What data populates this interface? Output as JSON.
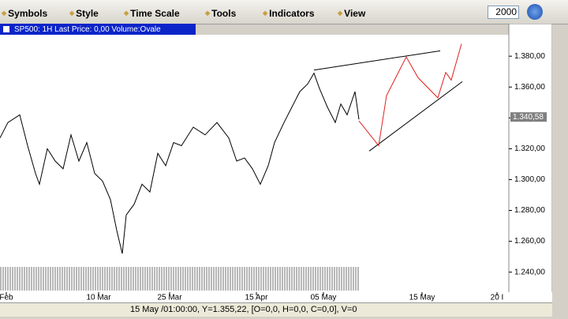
{
  "toolbar": {
    "menus": [
      "Symbols",
      "Style",
      "Time Scale",
      "Tools",
      "Indicators",
      "View"
    ],
    "input": "2000"
  },
  "chart_data": {
    "type": "line",
    "title": "SP500: 1H Last Price: 0,00 Volume:Ovale",
    "series": [
      {
        "color": "#000000",
        "x": [
          0,
          2.5,
          6.25,
          8.75,
          11.25,
          12.5,
          15,
          17.5,
          20,
          22.5,
          25,
          27.5,
          30,
          32.5,
          35,
          37,
          38.75,
          40,
          42.5,
          45,
          47.5,
          50,
          52.5,
          55,
          57.5,
          61.25,
          65,
          68.75,
          72.5,
          75,
          77.5,
          80,
          82.5,
          85,
          87,
          90,
          92.5,
          95,
          97.5,
          99.5,
          101.25,
          103.75,
          106.25,
          108,
          110,
          112.5,
          113.75
        ],
        "values": [
          1327,
          1337,
          1342,
          1322,
          1304,
          1297,
          1320,
          1312,
          1307,
          1329,
          1312,
          1324,
          1304,
          1299,
          1287,
          1267,
          1252,
          1277,
          1284,
          1297,
          1292,
          1317,
          1309,
          1324,
          1322,
          1334,
          1329,
          1337,
          1327,
          1312,
          1314,
          1307,
          1297,
          1309,
          1324,
          1337,
          1347,
          1357,
          1362,
          1369,
          1359,
          1347,
          1337,
          1349,
          1342,
          1357,
          1339
        ]
      },
      {
        "color": "#000000",
        "x": [
          99.5,
          139.5
        ],
        "values": [
          1371,
          1383.5
        ]
      },
      {
        "color": "#000000",
        "x": [
          117,
          146.5
        ],
        "values": [
          1318.5,
          1363.5
        ]
      },
      {
        "color": "#e02020",
        "x": [
          113.75,
          120,
          122.5,
          128.75,
          132.5,
          138.75,
          141.25,
          143,
          146.25
        ],
        "values": [
          1338,
          1322,
          1354.5,
          1379.5,
          1366,
          1353,
          1369.5,
          1364.5,
          1388
        ]
      }
    ],
    "last_price": {
      "value": 1340.58,
      "label": "1.340,58"
    },
    "xlim": [
      0,
      161.25
    ],
    "ylim": [
      1226,
      1398
    ],
    "xticks": [
      {
        "value": 2,
        "label": "Feb"
      },
      {
        "value": 31.25,
        "label": "10 Mar"
      },
      {
        "value": 53.75,
        "label": "25 Mar"
      },
      {
        "value": 81.25,
        "label": "15 Apr"
      },
      {
        "value": 102.5,
        "label": "05 May"
      },
      {
        "value": 133.75,
        "label": "15 May"
      },
      {
        "value": 157.5,
        "label": "20 I"
      }
    ],
    "yticks": [
      {
        "value": 1240,
        "label": "1.240,00"
      },
      {
        "value": 1260,
        "label": "1.260,00"
      },
      {
        "value": 1280,
        "label": "1.280,00"
      },
      {
        "value": 1300,
        "label": "1.300,00"
      },
      {
        "value": 1320,
        "label": "1.320,00"
      },
      {
        "value": 1340,
        "label": "1.340,00"
      },
      {
        "value": 1360,
        "label": "1.360,00"
      },
      {
        "value": 1380,
        "label": "1.380,00"
      }
    ]
  },
  "status_bar": {
    "text": "15 May /01:00:00, Y=1.355,22, [O=0,0, H=0,0, C=0,0], V=0"
  }
}
